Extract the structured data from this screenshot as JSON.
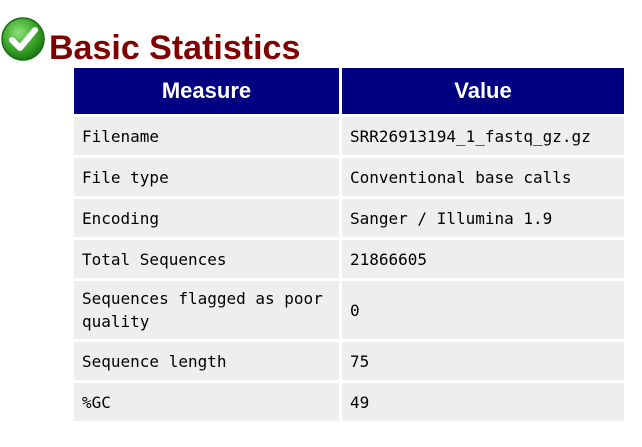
{
  "section": {
    "title": "Basic Statistics",
    "status_icon": "pass-check-icon",
    "status_color": "#2ea31a"
  },
  "table": {
    "headers": {
      "measure": "Measure",
      "value": "Value"
    },
    "rows": [
      {
        "measure": "Filename",
        "value": "SRR26913194_1_fastq_gz.gz"
      },
      {
        "measure": "File type",
        "value": "Conventional base calls"
      },
      {
        "measure": "Encoding",
        "value": "Sanger / Illumina 1.9"
      },
      {
        "measure": "Total Sequences",
        "value": "21866605"
      },
      {
        "measure": "Sequences flagged as poor quality",
        "value": "0"
      },
      {
        "measure": "Sequence length",
        "value": "75"
      },
      {
        "measure": "%GC",
        "value": "49"
      }
    ]
  },
  "colors": {
    "title": "#800000",
    "header_bg": "#000080",
    "header_text": "#ffffff",
    "cell_bg": "#eeeeee"
  }
}
